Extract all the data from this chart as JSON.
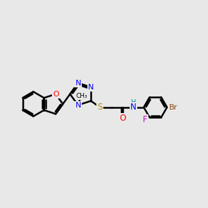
{
  "background_color": "#e8e8e8",
  "bond_color": "#000000",
  "bond_width": 1.8,
  "atom_colors": {
    "N": "#0000ff",
    "O": "#ff0000",
    "S": "#b8860b",
    "F": "#cc00cc",
    "Br": "#8B4513",
    "H": "#008b8b",
    "C": "#000000"
  },
  "fig_width": 3.0,
  "fig_height": 3.0,
  "dpi": 100,
  "xlim": [
    0,
    12
  ],
  "ylim": [
    2,
    9
  ]
}
